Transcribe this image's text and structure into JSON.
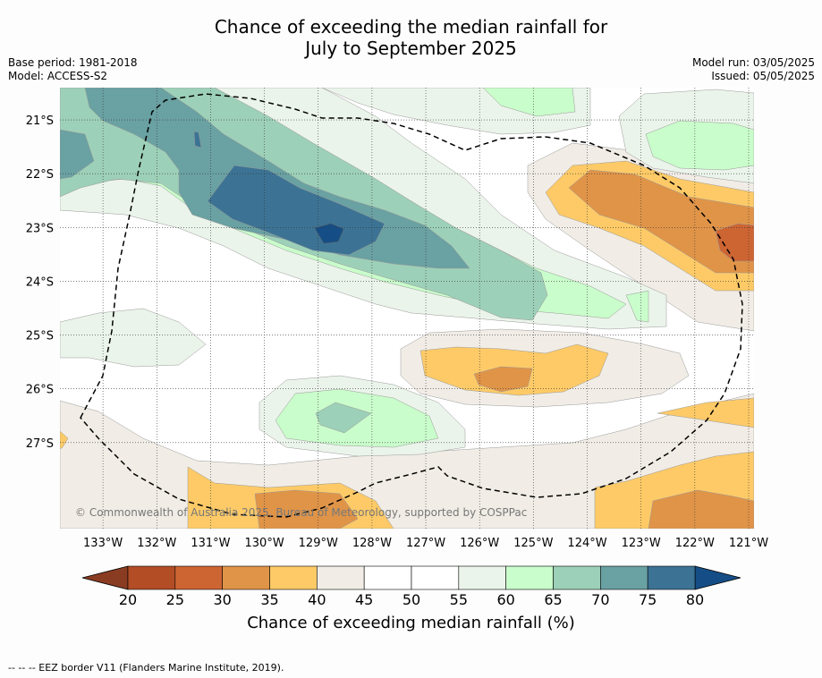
{
  "title": {
    "line1": "Chance of exceeding the median rainfall for",
    "line2": "July to September 2025"
  },
  "meta": {
    "base_period": "Base period: 1981-2018",
    "model": "Model: ACCESS-S2",
    "model_run": "Model run: 03/05/2025",
    "issued": "Issued: 05/05/2025"
  },
  "map": {
    "lon_range": [
      -133.8,
      -120.9
    ],
    "lat_range": [
      -28.6,
      -20.4
    ],
    "lon_ticks": [
      {
        "value": -133,
        "label": "133°W"
      },
      {
        "value": -132,
        "label": "132°W"
      },
      {
        "value": -131,
        "label": "131°W"
      },
      {
        "value": -130,
        "label": "130°W"
      },
      {
        "value": -129,
        "label": "129°W"
      },
      {
        "value": -128,
        "label": "128°W"
      },
      {
        "value": -127,
        "label": "127°W"
      },
      {
        "value": -126,
        "label": "126°W"
      },
      {
        "value": -125,
        "label": "125°W"
      },
      {
        "value": -124,
        "label": "124°W"
      },
      {
        "value": -123,
        "label": "123°W"
      },
      {
        "value": -122,
        "label": "122°W"
      },
      {
        "value": -121,
        "label": "121°W"
      }
    ],
    "lat_ticks": [
      {
        "value": -21,
        "label": "21°S"
      },
      {
        "value": -22,
        "label": "22°S"
      },
      {
        "value": -23,
        "label": "23°S"
      },
      {
        "value": -24,
        "label": "24°S"
      },
      {
        "value": -25,
        "label": "25°S"
      },
      {
        "value": -26,
        "label": "26°S"
      },
      {
        "value": -27,
        "label": "27°S"
      }
    ],
    "copyright": "© Commonwealth of Australia 2025, Bureau of Meteorology, supported by COSPPac"
  },
  "colorbar": {
    "levels": [
      20,
      25,
      30,
      35,
      40,
      45,
      50,
      55,
      60,
      65,
      70,
      75,
      80
    ],
    "colors": [
      "#b24d26",
      "#cd6533",
      "#e09448",
      "#fdca67",
      "#f1ede6",
      "#ffffff",
      "#ffffff",
      "#ebf4ea",
      "#c9fdcb",
      "#9dd0b8",
      "#6aa1a2",
      "#3c7394"
    ],
    "under_color": "#8a3c22",
    "over_color": "#154e86",
    "title": "Chance of exceeding median rainfall (%)"
  },
  "footer": "--  --  -- EEZ border V11 (Flanders Marine Institute, 2019)."
}
